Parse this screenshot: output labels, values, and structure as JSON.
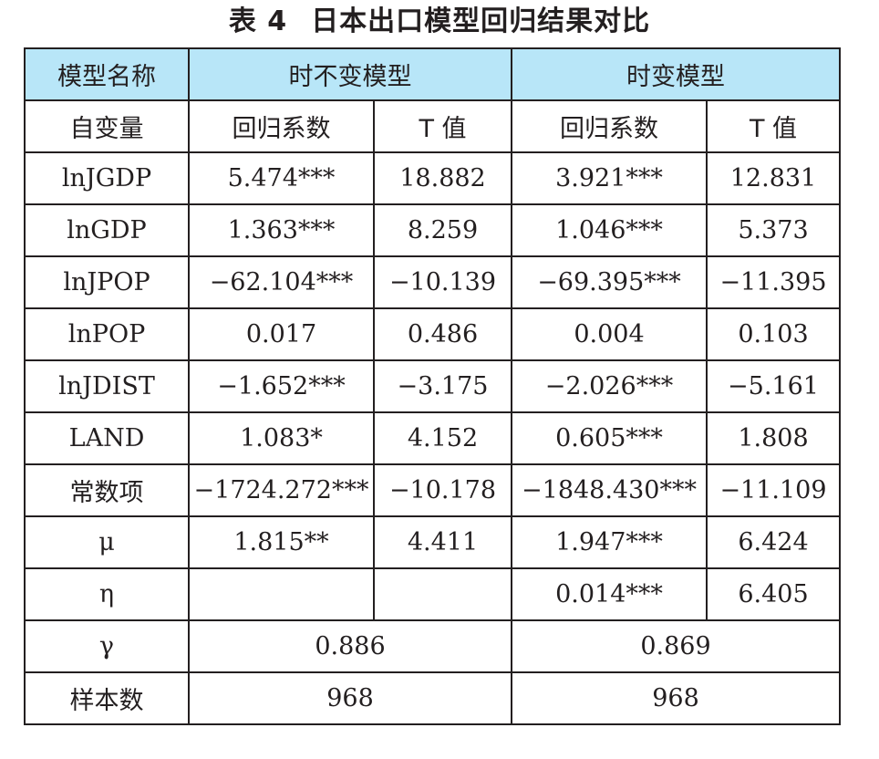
{
  "title": {
    "number": "表 4",
    "text": "日本出口模型回归结果对比"
  },
  "header": {
    "model_name": "模型名称",
    "time_invariant": "时不变模型",
    "time_varying": "时变模型"
  },
  "subheader": {
    "variable": "自变量",
    "coef": "回归系数",
    "t_value": "T 值"
  },
  "rows": [
    {
      "variable": "lnJGDP",
      "ti_coef": "5.474***",
      "ti_t": "18.882",
      "tv_coef": "3.921***",
      "tv_t": "12.831"
    },
    {
      "variable": "lnGDP",
      "ti_coef": "1.363***",
      "ti_t": "8.259",
      "tv_coef": "1.046***",
      "tv_t": "5.373"
    },
    {
      "variable": "lnJPOP",
      "ti_coef": "−62.104***",
      "ti_t": "−10.139",
      "tv_coef": "−69.395***",
      "tv_t": "−11.395"
    },
    {
      "variable": "lnPOP",
      "ti_coef": "0.017",
      "ti_t": "0.486",
      "tv_coef": "0.004",
      "tv_t": "0.103"
    },
    {
      "variable": "lnJDIST",
      "ti_coef": "−1.652***",
      "ti_t": "−3.175",
      "tv_coef": "−2.026***",
      "tv_t": "−5.161"
    },
    {
      "variable": "LAND",
      "ti_coef": "1.083*",
      "ti_t": "4.152",
      "tv_coef": "0.605***",
      "tv_t": "1.808"
    },
    {
      "variable": "常数项",
      "ti_coef": "−1724.272***",
      "ti_t": "−10.178",
      "tv_coef": "−1848.430***",
      "tv_t": "−11.109"
    },
    {
      "variable": "μ",
      "ti_coef": "1.815**",
      "ti_t": "4.411",
      "tv_coef": "1.947***",
      "tv_t": "6.424"
    },
    {
      "variable": "η",
      "ti_coef": "",
      "ti_t": "",
      "tv_coef": "0.014***",
      "tv_t": "6.405"
    }
  ],
  "gamma": {
    "variable": "γ",
    "time_invariant": "0.886",
    "time_varying": "0.869"
  },
  "samples": {
    "variable": "样本数",
    "time_invariant": "968",
    "time_varying": "968"
  },
  "colors": {
    "header_bg": "#b8e6f8",
    "border": "#231f20",
    "text": "#231f20"
  }
}
